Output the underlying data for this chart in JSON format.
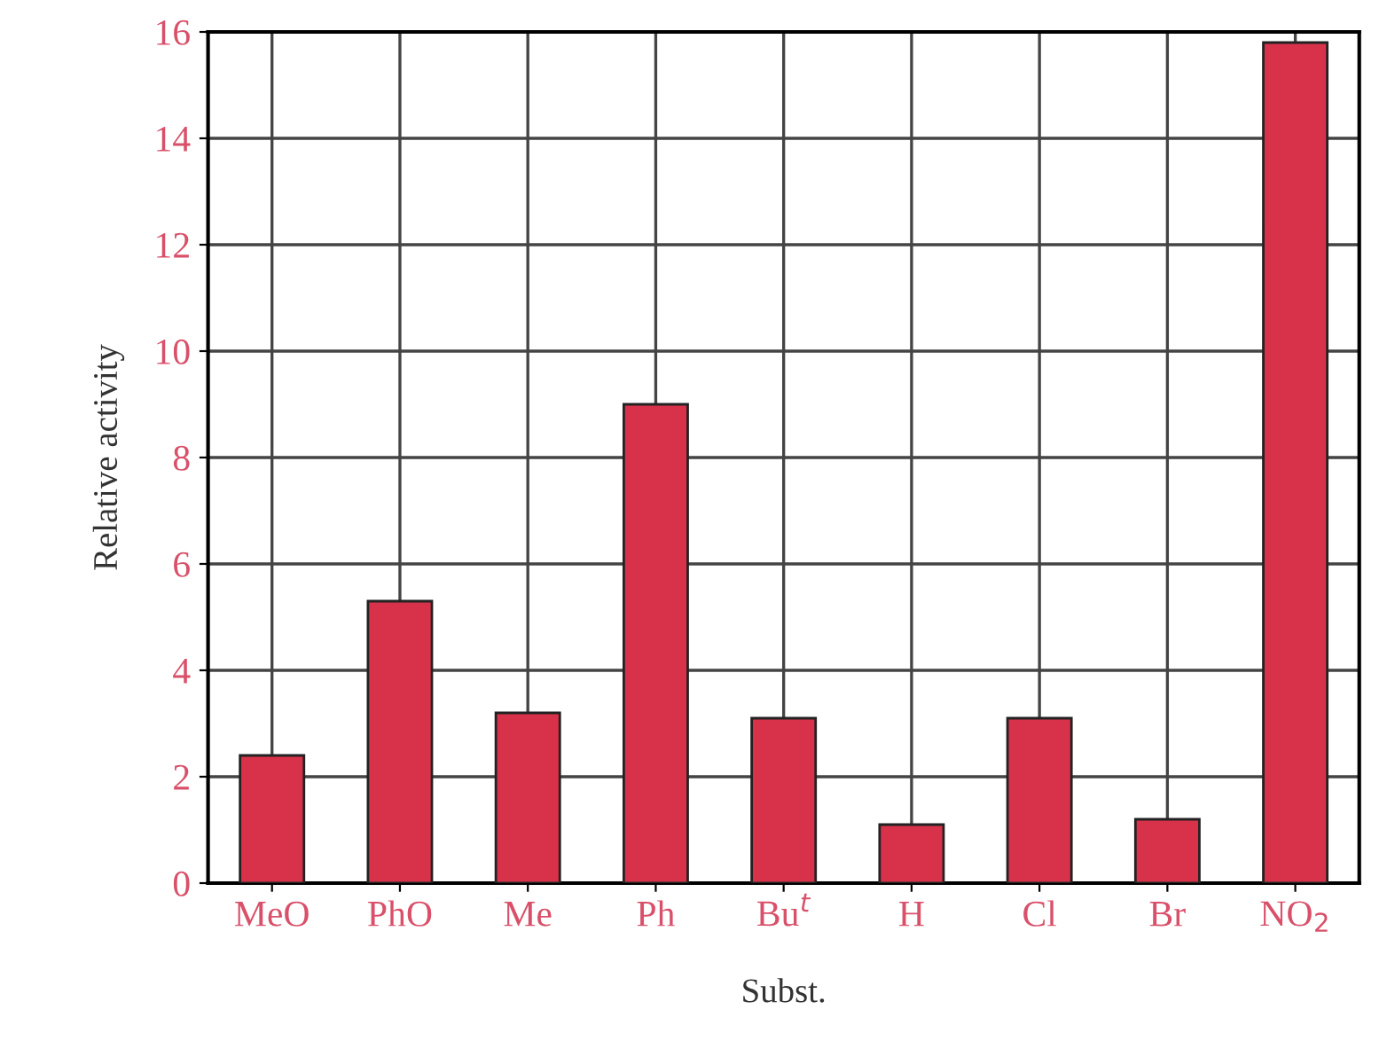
{
  "chart_data": {
    "type": "bar",
    "xlabel": "Subst.",
    "ylabel": "Relative activity",
    "categories": [
      "MeO",
      "PhO",
      "Me",
      "Ph",
      "Bu$^{t}$",
      "H",
      "Cl",
      "Br",
      "NO$_{2}$"
    ],
    "values": [
      2.4,
      5.3,
      3.2,
      9.0,
      3.1,
      1.1,
      3.1,
      1.2,
      15.8
    ],
    "color": "#d8324a",
    "ylim": [
      0,
      16
    ],
    "yticks": [
      0,
      2,
      4,
      6,
      8,
      10,
      12,
      14,
      16
    ],
    "grid": true
  }
}
